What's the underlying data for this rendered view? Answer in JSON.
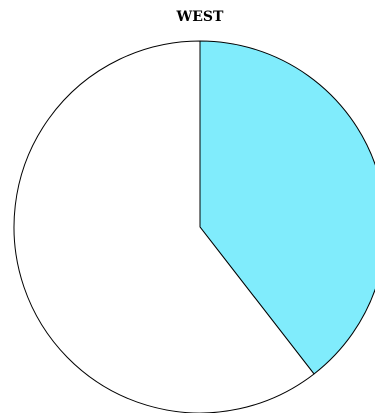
{
  "chart_data": {
    "type": "pie",
    "title": "WEST",
    "slices": [
      {
        "label": "",
        "value": 39.5,
        "color": "#80ecfc"
      },
      {
        "label": "",
        "value": 60.5,
        "color": "#ffffff"
      }
    ],
    "start_angle_deg": 0,
    "direction": "clockwise",
    "legend": "none"
  }
}
